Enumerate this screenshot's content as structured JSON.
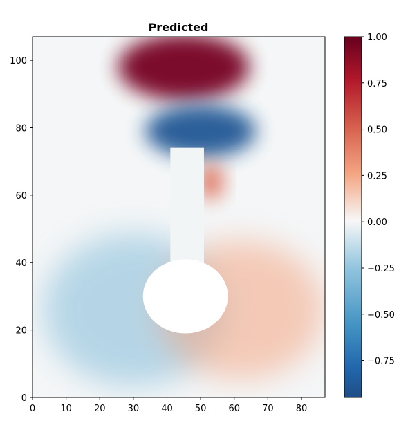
{
  "chart_data": {
    "type": "heatmap",
    "title": "Predicted",
    "xlabel": "",
    "ylabel": "",
    "xlim": [
      0,
      87
    ],
    "ylim": [
      0,
      107
    ],
    "x_ticks": [
      "0",
      "10",
      "20",
      "30",
      "40",
      "50",
      "60",
      "70",
      "80"
    ],
    "y_ticks": [
      "0",
      "20",
      "40",
      "60",
      "80",
      "100"
    ],
    "colorbar": {
      "range": [
        -0.95,
        1.0
      ],
      "ticks": [
        "1.00",
        "0.75",
        "0.50",
        "0.25",
        "0.00",
        "−0.25",
        "−0.50",
        "−0.75"
      ],
      "tick_values": [
        1.0,
        0.75,
        0.5,
        0.25,
        0.0,
        -0.25,
        -0.5,
        -0.75
      ],
      "colormap": "RdBu_r"
    },
    "features": [
      {
        "name": "positive-top-lobe",
        "x": 45,
        "y": 98,
        "value": 0.95
      },
      {
        "name": "negative-upper-lobe",
        "x": 50,
        "y": 79,
        "value": -0.9
      },
      {
        "name": "positive-small-lobe",
        "x": 53,
        "y": 64,
        "value": 0.45
      },
      {
        "name": "negative-lower-left",
        "x": 30,
        "y": 26,
        "value": -0.3
      },
      {
        "name": "positive-lower-right",
        "x": 62,
        "y": 26,
        "value": 0.25
      }
    ],
    "mask": {
      "body_x": 45.5,
      "body_y": 30,
      "body_radius": 11,
      "stem_x_range": [
        41,
        51
      ],
      "stem_y_range": [
        30,
        74
      ]
    }
  }
}
